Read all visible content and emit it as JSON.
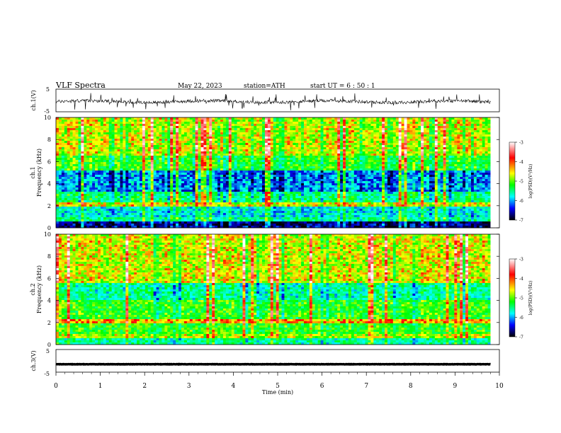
{
  "header": {
    "title": "VLF  Spectra",
    "date": "May 22, 2023",
    "station": "station=ATH",
    "start": "start  UT  =   6  : 50 : 1"
  },
  "chart_data": [
    {
      "type": "line",
      "panel": "ch1-waveform",
      "ylabel": "ch.1(V)",
      "ylim": [
        -5,
        5
      ],
      "yticks": [
        "5",
        "-5"
      ],
      "xlim": [
        0,
        10
      ],
      "series_color": "#000000",
      "baseline": -0.5,
      "signal": "noisy broadband waveform with spikes to about ±4 V"
    },
    {
      "type": "heatmap",
      "panel": "ch1-spectrogram",
      "ylabel_top": "ch.1",
      "ylabel": "Frequency  (kHz)",
      "ylim": [
        0,
        10
      ],
      "yticks": [
        "0",
        "2",
        "4",
        "6",
        "8",
        "10"
      ],
      "xlim": [
        0,
        10
      ],
      "colorbar": {
        "label": "log(PSD)(V²/Hz)",
        "range": [
          -7,
          -3
        ],
        "ticks": [
          "-3",
          "-4",
          "-5",
          "-6",
          "-7"
        ],
        "colors": [
          "#ffffff",
          "#ff0000",
          "#ffff00",
          "#00ff00",
          "#00ffff",
          "#0000ff",
          "#000000"
        ]
      },
      "bands_khz": [
        {
          "from": 0,
          "to": 0.5,
          "level": -6.6
        },
        {
          "from": 0.5,
          "to": 1.0,
          "level": -5.4
        },
        {
          "from": 1.0,
          "to": 2.0,
          "level": -5.7
        },
        {
          "from": 2.0,
          "to": 2.3,
          "level": -4.4
        },
        {
          "from": 2.3,
          "to": 3.2,
          "level": -5.3
        },
        {
          "from": 3.2,
          "to": 5.2,
          "level": -6.0
        },
        {
          "from": 5.2,
          "to": 6.5,
          "level": -5.0
        },
        {
          "from": 6.5,
          "to": 10.0,
          "level": -4.5
        }
      ]
    },
    {
      "type": "heatmap",
      "panel": "ch2-spectrogram",
      "ylabel_top": "ch.2",
      "ylabel": "Frequency  (kHz)",
      "ylim": [
        0,
        10
      ],
      "yticks": [
        "0",
        "2",
        "4",
        "6",
        "8",
        "10"
      ],
      "xlim": [
        0,
        10
      ],
      "colorbar": {
        "label": "log(PSD)(V²/Hz)",
        "range": [
          -7,
          -3
        ],
        "ticks": [
          "-3",
          "-4",
          "-5",
          "-6",
          "-7"
        ],
        "colors": [
          "#ffffff",
          "#ff0000",
          "#ffff00",
          "#00ff00",
          "#00ffff",
          "#0000ff",
          "#000000"
        ]
      },
      "bands_khz": [
        {
          "from": 0,
          "to": 0.5,
          "level": -5.5
        },
        {
          "from": 0.5,
          "to": 1.0,
          "level": -4.6
        },
        {
          "from": 1.0,
          "to": 2.0,
          "level": -5.0
        },
        {
          "from": 2.0,
          "to": 2.3,
          "level": -4.2
        },
        {
          "from": 2.3,
          "to": 4.0,
          "level": -5.0
        },
        {
          "from": 4.0,
          "to": 5.5,
          "level": -5.5
        },
        {
          "from": 5.5,
          "to": 10.0,
          "level": -4.5
        }
      ]
    },
    {
      "type": "line",
      "panel": "ch3-waveform",
      "ylabel": "ch.3(V)",
      "ylim": [
        -5,
        5
      ],
      "yticks": [
        "5",
        "-5"
      ],
      "xlim": [
        0,
        10
      ],
      "series_color": "#000000",
      "baseline": -1.5,
      "signal": "flat thick trace near -1.5 V"
    }
  ],
  "x_axis": {
    "label": "Time  (min)",
    "range": [
      0,
      10
    ],
    "ticks": [
      "0",
      "1",
      "2",
      "3",
      "4",
      "5",
      "6",
      "7",
      "8",
      "9",
      "10"
    ],
    "data_end_min": 9.8
  }
}
